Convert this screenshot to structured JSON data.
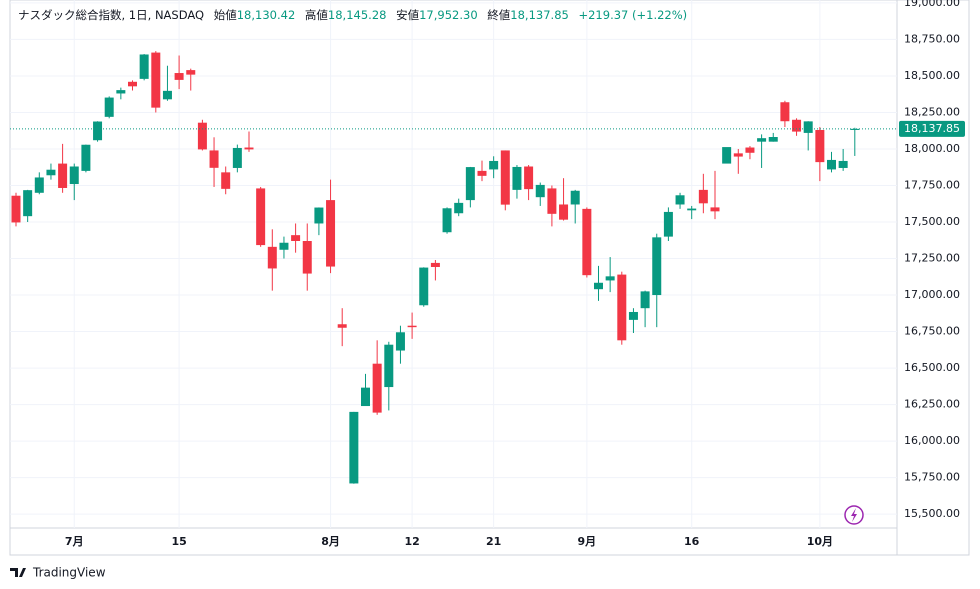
{
  "chart_data": {
    "type": "candlestick",
    "header": {
      "name": "ナスダック総合指数, 1日, NASDAQ",
      "open_caption": "始値",
      "open": "18,130.42",
      "high_caption": "高値",
      "high": "18,145.28",
      "low_caption": "安値",
      "low": "17,952.30",
      "close_caption": "終値",
      "close": "18,137.85",
      "change": "+219.37 (+1.22%)"
    },
    "brand": "TradingView",
    "up_color": "#089981",
    "down_color": "#f23645",
    "categories": [
      null,
      null,
      null,
      null,
      null,
      "7月",
      null,
      null,
      null,
      null,
      null,
      null,
      null,
      null,
      "15",
      null,
      null,
      null,
      null,
      null,
      null,
      null,
      null,
      null,
      null,
      null,
      null,
      "8月",
      null,
      null,
      null,
      null,
      null,
      null,
      "12",
      null,
      null,
      null,
      null,
      null,
      null,
      "21",
      null,
      null,
      null,
      null,
      null,
      null,
      null,
      "9月",
      null,
      null,
      null,
      null,
      null,
      null,
      null,
      null,
      "16",
      null,
      null,
      null,
      null,
      null,
      null,
      null,
      null,
      null,
      null,
      "10月",
      null,
      null,
      null
    ],
    "open": [
      17680,
      17540,
      17700,
      17820,
      17900,
      17760,
      17850,
      18060,
      18220,
      18380,
      18460,
      18480,
      18660,
      18340,
      18520,
      18540,
      18180,
      17990,
      17840,
      17870,
      18010,
      17730,
      17330,
      17310,
      17410,
      17370,
      17490,
      17650,
      16800,
      15710,
      16240,
      16530,
      16370,
      16620,
      16790,
      16930,
      17220,
      17430,
      17560,
      17650,
      17850,
      17860,
      17990,
      17720,
      17880,
      17670,
      17730,
      17620,
      17620,
      17590,
      17040,
      17100,
      17140,
      16830,
      16910,
      17000,
      17400,
      17620,
      17580,
      17720,
      17600,
      17900,
      17970,
      18010,
      18050,
      18050,
      18320,
      18200,
      18110,
      18130,
      17860,
      17870,
      18130.42
    ],
    "high": [
      17700,
      17720,
      17840,
      17900,
      18035,
      17900,
      18030,
      18190,
      18360,
      18420,
      18470,
      18650,
      18670,
      18570,
      18640,
      18550,
      18200,
      18080,
      17880,
      18030,
      18120,
      17740,
      17450,
      17400,
      17490,
      17490,
      17600,
      17790,
      16910,
      16200,
      16460,
      16690,
      16680,
      16790,
      16880,
      17190,
      17240,
      17600,
      17660,
      17877,
      17920,
      17950,
      17990,
      17890,
      17890,
      17770,
      17750,
      17800,
      17720,
      17600,
      17200,
      17260,
      17160,
      16910,
      17030,
      17420,
      17600,
      17700,
      17610,
      17830,
      17850,
      18000,
      18000,
      18020,
      18100,
      18110,
      18330,
      18210,
      18190,
      18150,
      17980,
      18000,
      18145.28
    ],
    "low": [
      17470,
      17500,
      17690,
      17790,
      17700,
      17650,
      17840,
      18050,
      18210,
      18340,
      18400,
      18470,
      18250,
      18330,
      18410,
      18400,
      17990,
      17740,
      17690,
      17840,
      17980,
      17330,
      17030,
      17250,
      17290,
      17030,
      17410,
      17150,
      16650,
      15708,
      16240,
      16180,
      16210,
      16530,
      16700,
      16920,
      17100,
      17420,
      17540,
      17600,
      17780,
      17800,
      17580,
      17660,
      17650,
      17610,
      17470,
      17510,
      17490,
      17120,
      16960,
      17020,
      16660,
      16740,
      16780,
      16780,
      17370,
      17590,
      17520,
      17560,
      17520,
      17920,
      17830,
      17930,
      17870,
      18050,
      18150,
      18090,
      17990,
      17780,
      17840,
      17850,
      17952.3
    ],
    "close": [
      17497,
      17718,
      17805,
      17858,
      17733,
      17880,
      18029,
      18188,
      18352,
      18403,
      18429,
      18647,
      18283,
      18398,
      18473,
      18509,
      17997,
      17871,
      17727,
      18007,
      17997,
      17342,
      17182,
      17358,
      17370,
      17147,
      17599,
      17195,
      16776,
      16200,
      16366,
      16195,
      16660,
      16745,
      16780,
      17188,
      17192,
      17594,
      17631,
      17876,
      17816,
      17918,
      17619,
      17877,
      17725,
      17754,
      17556,
      17516,
      17714,
      17136,
      17084,
      17128,
      16690,
      16884,
      17025,
      17395,
      17569,
      17683,
      17592,
      17628,
      17573,
      18013,
      17948,
      17974,
      18074,
      18082,
      18190,
      18119,
      18189,
      17910,
      17925,
      17918,
      18137.85
    ],
    "ylim": [
      15405,
      19020
    ],
    "yticks": [
      {
        "value": 15500,
        "label": "15,500.00"
      },
      {
        "value": 15750,
        "label": "15,750.00"
      },
      {
        "value": 16000,
        "label": "16,000.00"
      },
      {
        "value": 16250,
        "label": "16,250.00"
      },
      {
        "value": 16500,
        "label": "16,500.00"
      },
      {
        "value": 16750,
        "label": "16,750.00"
      },
      {
        "value": 17000,
        "label": "17,000.00"
      },
      {
        "value": 17250,
        "label": "17,250.00"
      },
      {
        "value": 17500,
        "label": "17,500.00"
      },
      {
        "value": 17750,
        "label": "17,750.00"
      },
      {
        "value": 18000,
        "label": "18,000.00"
      },
      {
        "value": 18250,
        "label": "18,250.00"
      },
      {
        "value": 18500,
        "label": "18,500.00"
      },
      {
        "value": 18750,
        "label": "18,750.00"
      },
      {
        "value": 19000,
        "label": "19,000.00"
      }
    ],
    "grid": true
  }
}
